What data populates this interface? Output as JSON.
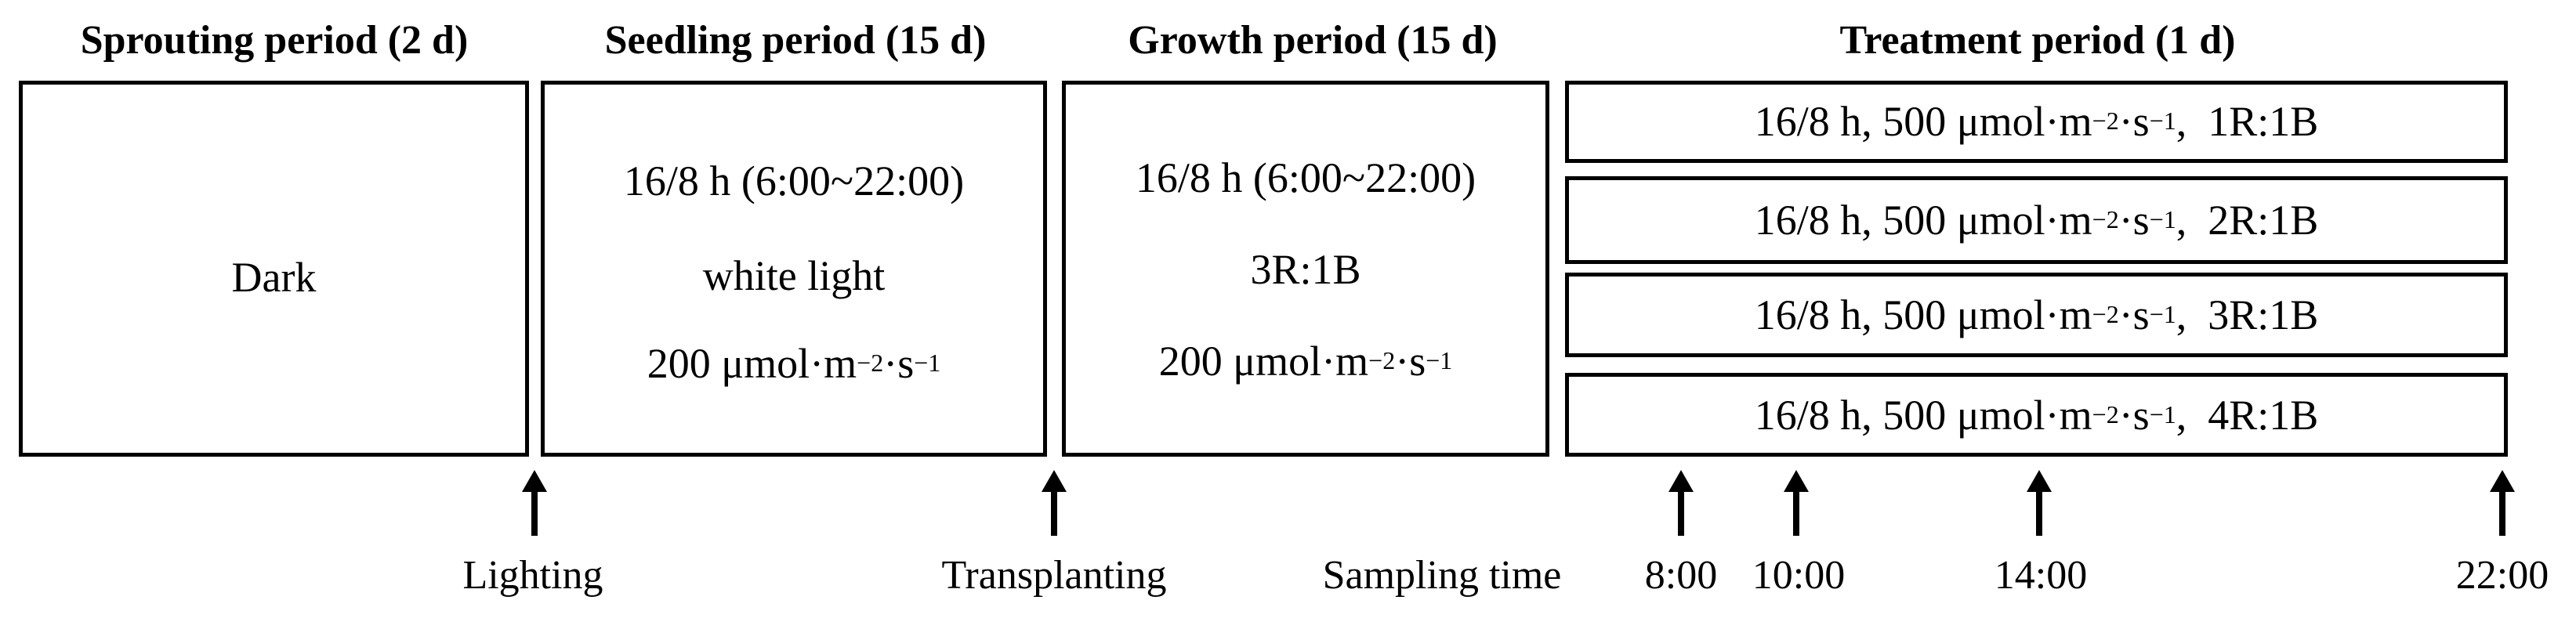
{
  "periods": [
    {
      "title": "Sprouting period (2 d)",
      "lines": [
        "Dark"
      ]
    },
    {
      "title": "Seedling period (15 d)",
      "lines": [
        "16/8 h (6:00~22:00)",
        "white light",
        "200 μmol·m",
        "−2",
        "·s",
        "−1"
      ]
    },
    {
      "title": "Growth period (15 d)",
      "lines": [
        "16/8 h (6:00~22:00)",
        "3R:1B",
        "200 μmol·m",
        "−2",
        "·s",
        "−1"
      ]
    },
    {
      "title": "Treatment period (1 d)"
    }
  ],
  "treatments": [
    {
      "prefix": "16/8 h, 500 μmol·m",
      "exp1": "−2",
      "mid": "·s",
      "exp2": "−1",
      "ratio": ",  1R:1B"
    },
    {
      "prefix": "16/8 h, 500 μmol·m",
      "exp1": "−2",
      "mid": "·s",
      "exp2": "−1",
      "ratio": ",  2R:1B"
    },
    {
      "prefix": "16/8 h, 500 μmol·m",
      "exp1": "−2",
      "mid": "·s",
      "exp2": "−1",
      "ratio": ",  3R:1B"
    },
    {
      "prefix": "16/8 h, 500 μmol·m",
      "exp1": "−2",
      "mid": "·s",
      "exp2": "−1",
      "ratio": ",  4R:1B"
    }
  ],
  "events": {
    "lighting": "Lighting",
    "transplanting": "Transplanting",
    "sampling_label": "Sampling time",
    "times": [
      "8:00",
      "10:00",
      "14:00",
      "22:00"
    ]
  }
}
